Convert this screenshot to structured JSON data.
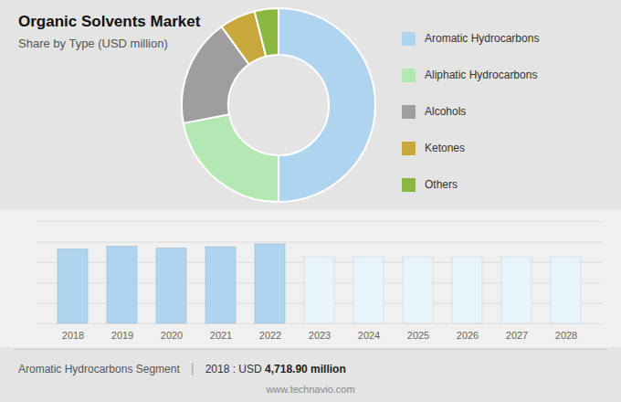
{
  "chart_data": [
    {
      "type": "pie",
      "title": "Organic Solvents Market",
      "subtitle": "Share by Type (USD million)",
      "categories": [
        "Aromatic Hydrocarbons",
        "Aliphatic Hydrocarbons",
        "Alcohols",
        "Ketones",
        "Others"
      ],
      "values": [
        50,
        22,
        18,
        6,
        4
      ],
      "colors": [
        "#afd4f0",
        "#b3e8b3",
        "#9e9e9e",
        "#c8a83c",
        "#8ab840"
      ],
      "legend": "right"
    },
    {
      "type": "bar",
      "categories": [
        "2018",
        "2019",
        "2020",
        "2021",
        "2022",
        "2023",
        "2024",
        "2025",
        "2026",
        "2027",
        "2028"
      ],
      "values": [
        4718.9,
        4900,
        4780,
        4870,
        5050,
        4225,
        4225,
        4225,
        4225,
        4225,
        4225
      ],
      "colors": [
        "#afd4f0",
        "#afd4f0",
        "#afd4f0",
        "#afd4f0",
        "#afd4f0",
        "#e8f4fc",
        "#e8f4fc",
        "#e8f4fc",
        "#e8f4fc",
        "#e8f4fc",
        "#e8f4fc"
      ],
      "ylim": [
        0,
        6500
      ],
      "yticks": [
        0,
        1300,
        2600,
        3900,
        5200,
        6500
      ],
      "grid": true,
      "tick_labels": "x",
      "annotations": [
        "Aromatic Hydrocarbons Segment",
        "|",
        "2018 : USD ",
        "4,718.90 million",
        "www.technavio.com"
      ]
    }
  ]
}
